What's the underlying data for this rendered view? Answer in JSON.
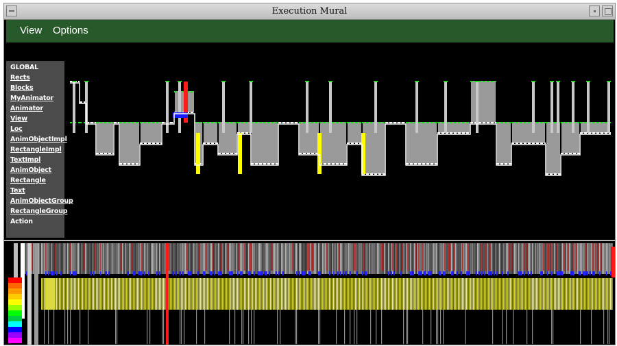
{
  "window": {
    "title": "Execution Mural"
  },
  "menu": {
    "view": "View",
    "options": "Options"
  },
  "classes": [
    {
      "label": "GLOBAL",
      "underline": false
    },
    {
      "label": "Rects",
      "underline": true
    },
    {
      "label": "Blocks",
      "underline": true
    },
    {
      "label": "MyAnimator",
      "underline": true
    },
    {
      "label": "Animator",
      "underline": true
    },
    {
      "label": "View",
      "underline": true
    },
    {
      "label": "Loc",
      "underline": true
    },
    {
      "label": "AnimObjectImpl",
      "underline": true
    },
    {
      "label": "RectangleImpl",
      "underline": true
    },
    {
      "label": "TextImpl",
      "underline": true
    },
    {
      "label": "AnimObject",
      "underline": true
    },
    {
      "label": "Rectangle",
      "underline": true
    },
    {
      "label": "Text",
      "underline": true
    },
    {
      "label": "AnimObjectGroup",
      "underline": true
    },
    {
      "label": "RectangleGroup",
      "underline": true
    },
    {
      "label": "Action",
      "underline": false
    }
  ],
  "colors": {
    "bar": "#9a9a9a",
    "dot": "#22dd22",
    "trace": "#ffffff",
    "highlight_yellow": "#ffff00",
    "highlight_red": "#ff1a1a",
    "highlight_blue": "#1a1aff",
    "menubar": "#27592a",
    "mural_yellow": "#cccc33"
  },
  "palette": [
    "#ff0000",
    "#ff6600",
    "#ff9900",
    "#ffcc00",
    "#ffff00",
    "#99ff00",
    "#00ff00",
    "#00cc44",
    "#00ffff",
    "#0000ff",
    "#9900ff",
    "#ff00ff"
  ]
}
